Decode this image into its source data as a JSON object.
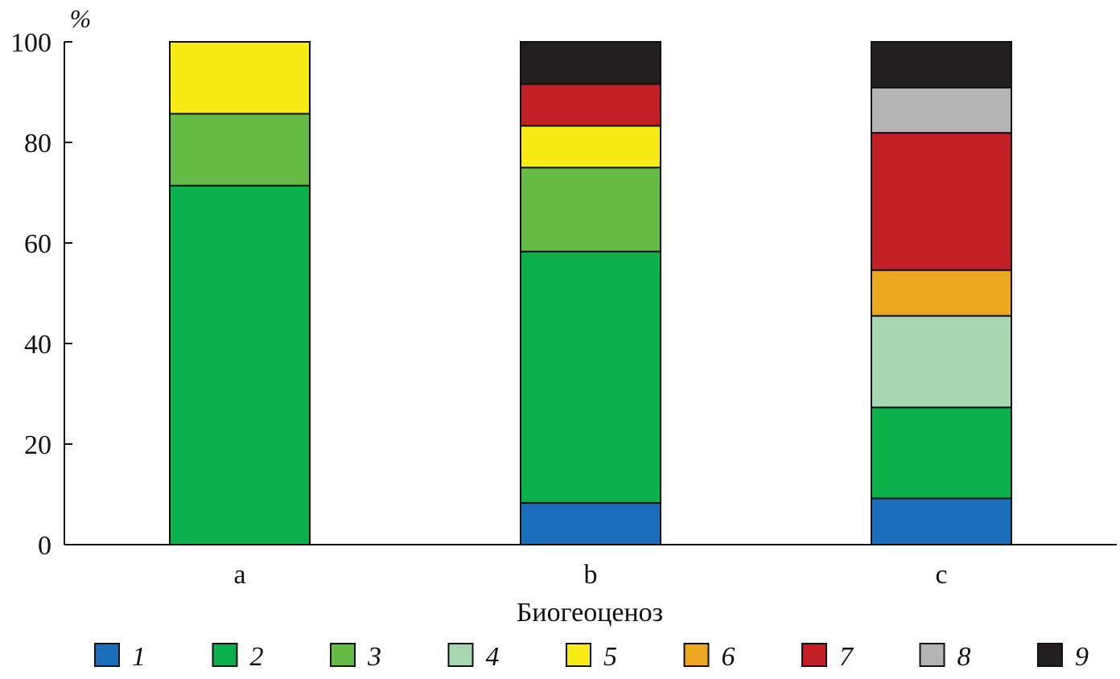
{
  "chart_data": {
    "type": "bar",
    "stacked": true,
    "unit_label": "%",
    "xlabel": "Биогеоценоз",
    "ylabel": "",
    "ylim": [
      0,
      100
    ],
    "yticks": [
      0,
      20,
      40,
      60,
      80,
      100
    ],
    "grid": false,
    "legend_position": "bottom",
    "categories": [
      "a",
      "b",
      "c"
    ],
    "series": [
      {
        "name": "1",
        "color": "#1b6fba",
        "values": [
          0,
          8.3,
          9.2
        ]
      },
      {
        "name": "2",
        "color": "#0db14b",
        "values": [
          71.4,
          50.0,
          18.1
        ]
      },
      {
        "name": "3",
        "color": "#66bb46",
        "values": [
          14.3,
          16.7,
          0
        ]
      },
      {
        "name": "4",
        "color": "#a8d8b3",
        "values": [
          0,
          0,
          18.2
        ]
      },
      {
        "name": "5",
        "color": "#f6eb14",
        "values": [
          14.3,
          8.3,
          0
        ]
      },
      {
        "name": "6",
        "color": "#eca820",
        "values": [
          0,
          0,
          9.1
        ]
      },
      {
        "name": "7",
        "color": "#c02026",
        "values": [
          0,
          8.3,
          27.3
        ]
      },
      {
        "name": "8",
        "color": "#b4b4b5",
        "values": [
          0,
          0,
          9.0
        ]
      },
      {
        "name": "9",
        "color": "#231f20",
        "values": [
          0,
          8.4,
          9.1
        ]
      }
    ]
  }
}
